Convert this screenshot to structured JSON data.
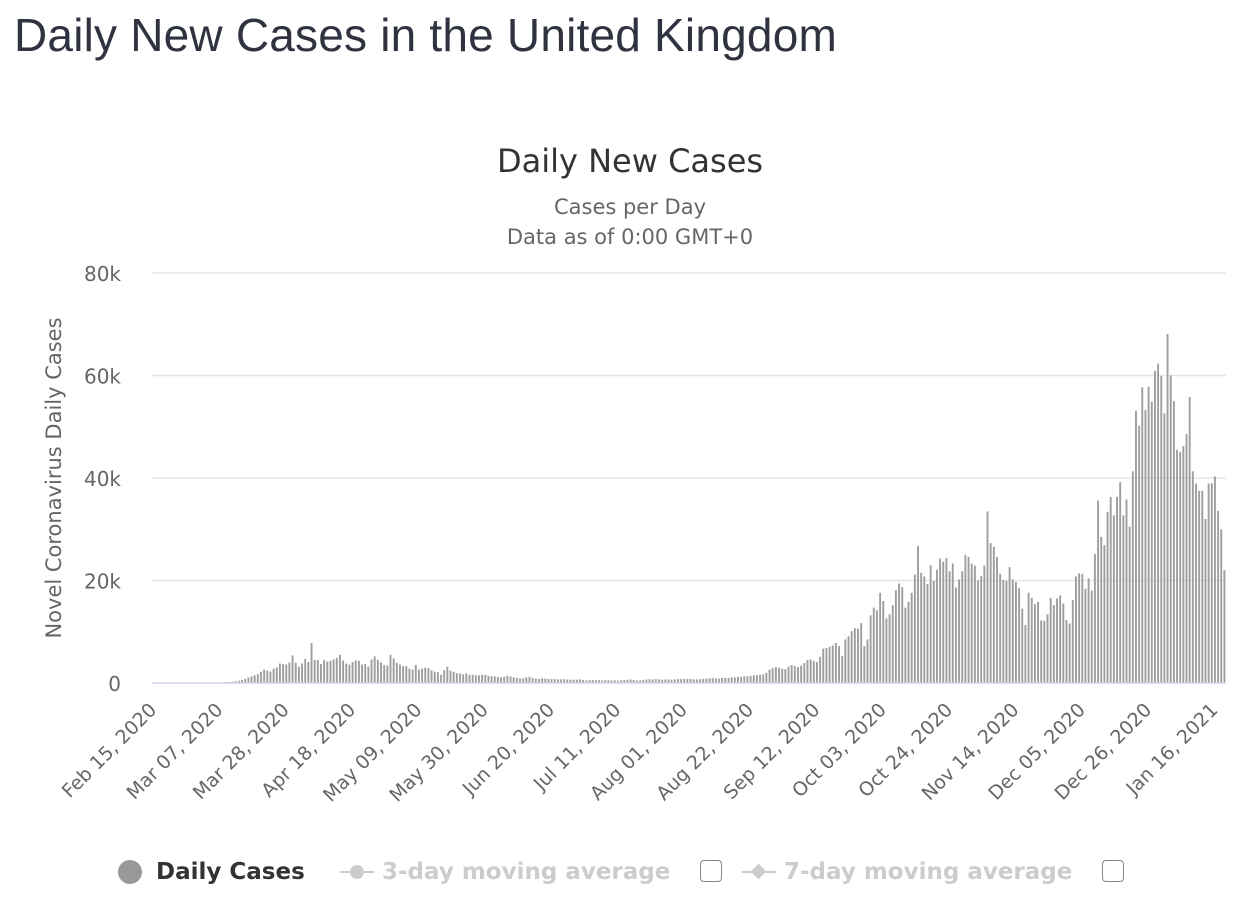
{
  "page": {
    "title": "Daily New Cases in the United Kingdom"
  },
  "legend": {
    "daily_cases": "Daily Cases",
    "ma3": "3-day moving average",
    "ma7": "7-day moving average"
  },
  "colors": {
    "bar": "#9e9e9e",
    "grid": "#e6e6e6",
    "axis_line": "#ccd6eb",
    "title": "#333333",
    "text": "#666666"
  },
  "chart_data": {
    "type": "bar",
    "title": "Daily New Cases",
    "subtitle": [
      "Cases per Day",
      "Data as of 0:00 GMT+0"
    ],
    "ylabel": "Novel Coronavirus Daily Cases",
    "xlabel": "",
    "ylim": [
      0,
      80000
    ],
    "y_ticks": [
      0,
      20000,
      40000,
      60000,
      80000
    ],
    "y_tick_labels": [
      "0",
      "20k",
      "40k",
      "60k",
      "80k"
    ],
    "x_tick_labels": [
      "Feb 15, 2020",
      "Mar 07, 2020",
      "Mar 28, 2020",
      "Apr 18, 2020",
      "May 09, 2020",
      "May 30, 2020",
      "Jun 20, 2020",
      "Jul 11, 2020",
      "Aug 01, 2020",
      "Aug 22, 2020",
      "Sep 12, 2020",
      "Oct 03, 2020",
      "Oct 24, 2020",
      "Nov 14, 2020",
      "Dec 05, 2020",
      "Dec 26, 2020",
      "Jan 16, 2021"
    ],
    "x_start": "Feb 15, 2020",
    "x_end": "Jan 22, 2021",
    "grid": true,
    "legend_position": "bottom",
    "series": [
      {
        "name": "Daily Cases",
        "values": [
          0,
          0,
          0,
          0,
          0,
          0,
          0,
          0,
          0,
          0,
          0,
          0,
          0,
          0,
          0,
          0,
          0,
          0,
          0,
          0,
          35,
          50,
          100,
          150,
          200,
          260,
          350,
          450,
          600,
          800,
          1100,
          1300,
          1500,
          1700,
          2200,
          2600,
          2400,
          2200,
          2800,
          3000,
          3800,
          3700,
          3600,
          4000,
          5400,
          4000,
          3200,
          3800,
          4700,
          4100,
          7800,
          4500,
          4500,
          3700,
          4500,
          4200,
          4300,
          4600,
          4900,
          5500,
          4400,
          3800,
          3600,
          4100,
          4400,
          4300,
          3600,
          3700,
          3200,
          4600,
          5200,
          4500,
          4000,
          3500,
          3400,
          5500,
          4800,
          3900,
          3600,
          3300,
          3300,
          2800,
          2600,
          3500,
          2600,
          2800,
          3000,
          2900,
          2500,
          2200,
          2100,
          1600,
          2500,
          3200,
          2400,
          2200,
          1900,
          1900,
          1700,
          1900,
          1600,
          1600,
          1500,
          1500,
          1600,
          1600,
          1400,
          1300,
          1300,
          1200,
          1100,
          1200,
          1400,
          1300,
          1100,
          1000,
          900,
          900,
          1100,
          1200,
          950,
          850,
          800,
          900,
          850,
          800,
          750,
          750,
          700,
          700,
          750,
          650,
          650,
          650,
          650,
          700,
          600,
          500,
          550,
          600,
          550,
          550,
          500,
          550,
          550,
          500,
          500,
          450,
          550,
          600,
          600,
          700,
          600,
          500,
          500,
          600,
          700,
          750,
          700,
          750,
          700,
          650,
          700,
          700,
          650,
          700,
          750,
          750,
          800,
          800,
          800,
          700,
          700,
          750,
          800,
          850,
          900,
          950,
          900,
          850,
          1000,
          1000,
          1000,
          1100,
          1100,
          1200,
          1200,
          1300,
          1300,
          1400,
          1500,
          1500,
          1600,
          1700,
          2000,
          2600,
          2900,
          3100,
          3000,
          2800,
          2700,
          3200,
          3500,
          3300,
          3100,
          3400,
          3900,
          4500,
          4600,
          4300,
          4100,
          5100,
          6700,
          6800,
          7100,
          7300,
          7800,
          7200,
          5300,
          8500,
          9100,
          10100,
          10700,
          10600,
          11700,
          7200,
          8500,
          13200,
          14700,
          14200,
          17600,
          16000,
          12600,
          13400,
          15200,
          18100,
          19400,
          18700,
          14700,
          15800,
          17600,
          21200,
          26700,
          21500,
          20800,
          19300,
          23000,
          19900,
          22100,
          24300,
          23700,
          24400,
          21800,
          23300,
          18600,
          20200,
          21800,
          25000,
          24600,
          23300,
          22900,
          20000,
          20900,
          22900,
          33500,
          27300,
          26600,
          24600,
          21300,
          20100,
          19900,
          22600,
          20200,
          19700,
          18500,
          14500,
          11300,
          17600,
          16600,
          15400,
          15800,
          12200,
          12100,
          13400,
          16600,
          15200,
          16500,
          17100,
          15500,
          12300,
          11600,
          16200,
          20800,
          21400,
          21300,
          18400,
          20400,
          18000,
          25200,
          35600,
          28500,
          26900,
          33400,
          36300,
          32700,
          36300,
          39200,
          32700,
          35800,
          30500,
          41300,
          53100,
          50200,
          57700,
          53300,
          57800,
          54900,
          60900,
          62300,
          59900,
          52600,
          68100,
          60000,
          55000,
          45500,
          45100,
          46200,
          48600,
          55800,
          41300,
          38900,
          37500,
          37500,
          32000,
          38900,
          39000,
          40300,
          33600,
          30000,
          22000
        ]
      }
    ]
  }
}
